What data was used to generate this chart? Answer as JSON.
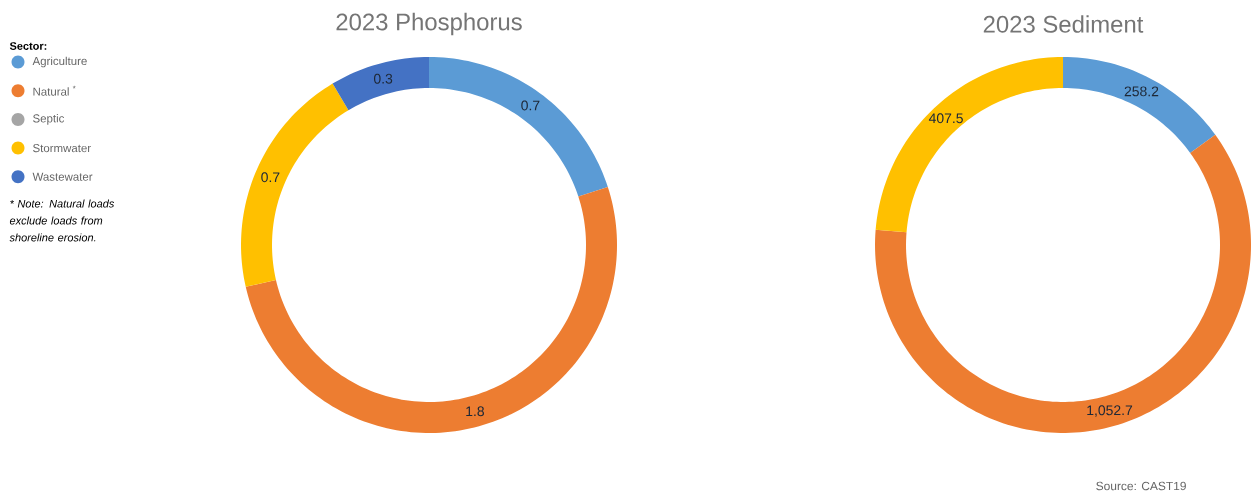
{
  "chart_data": [
    {
      "type": "donut",
      "title": "2023 Phosphorus",
      "legend_title": "Sector:",
      "legend": "left",
      "categories": [
        "Agriculture",
        "Natural $^{*}$",
        "Septic",
        "Stormwater",
        "Wastewater"
      ],
      "values": [
        0.7,
        1.8,
        0,
        0.7,
        0.3
      ],
      "value_labels": [
        "0.7",
        "1.8",
        null,
        "0.7",
        "0.3"
      ],
      "colors": [
        "#5b9bd5",
        "#ed7d31",
        "#a5a5a5",
        "#ffc000",
        "#4472c4"
      ],
      "annotations": [
        "* Note: Natural loads exclude loads from shoreline erosion."
      ]
    },
    {
      "type": "donut",
      "title": "2023 Sediment",
      "categories": [
        null,
        null,
        null,
        null,
        null
      ],
      "values": [
        258.2,
        1052.7,
        0,
        407.5,
        0
      ],
      "value_labels": [
        "258.2",
        "1,052.7",
        null,
        "407.5",
        null
      ],
      "colors": [
        "#5b9bd5",
        "#ed7d31",
        "#a5a5a5",
        "#ffc000",
        "#4472c4"
      ],
      "annotations": [
        "Source: CAST19"
      ]
    }
  ]
}
